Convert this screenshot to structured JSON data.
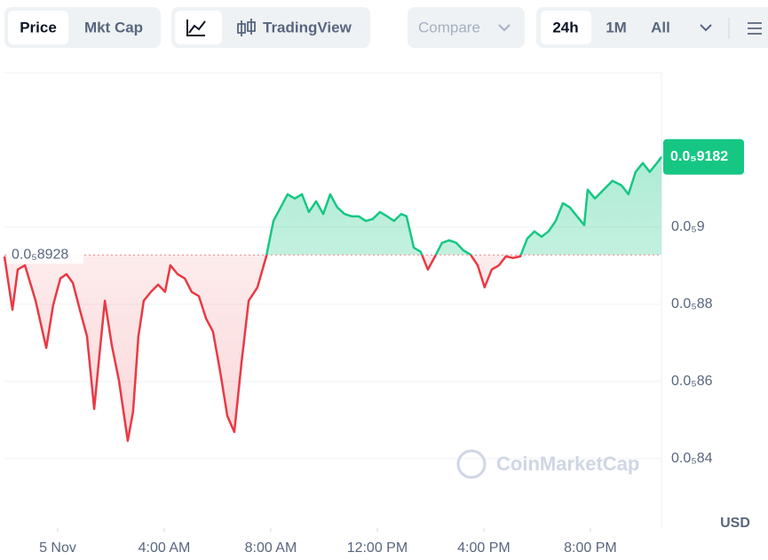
{
  "toolbar": {
    "tabs": [
      "Price",
      "Mkt Cap"
    ],
    "chart_style": "TradingView",
    "compare": "Compare",
    "ranges": [
      "24h",
      "1M",
      "All"
    ]
  },
  "chart_data": {
    "type": "line",
    "x": [
      -2,
      -1.7,
      -1.5,
      -1.23,
      -0.83,
      -0.43,
      -0.17,
      0.1,
      0.33,
      0.57,
      0.83,
      1.1,
      1.37,
      1.57,
      1.77,
      2.03,
      2.3,
      2.63,
      2.83,
      3.03,
      3.23,
      3.5,
      3.77,
      4.03,
      4.23,
      4.5,
      4.77,
      5.03,
      5.3,
      5.57,
      5.83,
      6.1,
      6.37,
      6.63,
      6.9,
      7.17,
      7.5,
      7.83,
      8.1,
      8.37,
      8.63,
      8.9,
      9.17,
      9.43,
      9.7,
      9.97,
      10.23,
      10.5,
      10.77,
      11.03,
      11.3,
      11.57,
      11.83,
      12.1,
      12.37,
      12.63,
      12.9,
      13.1,
      13.37,
      13.63,
      13.9,
      14.17,
      14.43,
      14.7,
      14.97,
      15.23,
      15.5,
      15.77,
      16.03,
      16.3,
      16.57,
      16.83,
      17.1,
      17.37,
      17.63,
      17.9,
      18.17,
      18.43,
      18.7,
      18.97,
      19.23,
      19.5,
      19.77,
      19.9,
      20.17,
      20.5,
      20.83,
      21.17,
      21.43,
      21.7,
      21.97,
      22.23,
      22.5,
      22.67
    ],
    "series": [
      {
        "name": "Price",
        "values": [
          8.924e-06,
          8.786e-06,
          8.89e-06,
          8.901e-06,
          8.809e-06,
          8.687e-06,
          8.798e-06,
          8.867e-06,
          8.878e-06,
          8.855e-06,
          8.786e-06,
          8.717e-06,
          8.529e-06,
          8.671e-06,
          8.809e-06,
          8.694e-06,
          8.602e-06,
          8.446e-06,
          8.522e-06,
          8.717e-06,
          8.809e-06,
          8.832e-06,
          8.851e-06,
          8.832e-06,
          8.901e-06,
          8.878e-06,
          8.867e-06,
          8.832e-06,
          8.821e-06,
          8.763e-06,
          8.729e-06,
          8.625e-06,
          8.51e-06,
          8.469e-06,
          8.648e-06,
          8.809e-06,
          8.844e-06,
          8.924e-06,
          9.016e-06,
          9.051e-06,
          9.085e-06,
          9.074e-06,
          9.085e-06,
          9.039e-06,
          9.067e-06,
          9.034e-06,
          9.085e-06,
          9.051e-06,
          9.034e-06,
          9.028e-06,
          9.028e-06,
          9.016e-06,
          9.021e-06,
          9.039e-06,
          9.028e-06,
          9.016e-06,
          9.034e-06,
          9.028e-06,
          8.947e-06,
          8.936e-06,
          8.89e-06,
          8.924e-06,
          8.959e-06,
          8.966e-06,
          8.959e-06,
          8.94e-06,
          8.929e-06,
          8.901e-06,
          8.844e-06,
          8.89e-06,
          8.901e-06,
          8.924e-06,
          8.92e-06,
          8.924e-06,
          8.97e-06,
          8.989e-06,
          8.975e-06,
          8.989e-06,
          9.016e-06,
          9.062e-06,
          9.051e-06,
          9.028e-06,
          9.005e-06,
          9.097e-06,
          9.074e-06,
          9.097e-06,
          9.12e-06,
          9.108e-06,
          9.085e-06,
          9.143e-06,
          9.166e-06,
          9.143e-06,
          9.166e-06,
          9.182e-06
        ]
      }
    ],
    "up_color": "#16c784",
    "down_color": "#ea3943",
    "reference": {
      "value": 8.928e-06,
      "label": "0.0₅8928"
    },
    "last": {
      "value": 9.182e-06,
      "label": "0.0₅9182"
    },
    "xlim": [
      -2,
      22.67
    ],
    "xticks": [
      {
        "value": 0,
        "label": "5 Nov"
      },
      {
        "value": 4,
        "label": "4:00 AM"
      },
      {
        "value": 8,
        "label": "8:00 AM"
      },
      {
        "value": 12,
        "label": "12:00 PM"
      },
      {
        "value": 16,
        "label": "4:00 PM"
      },
      {
        "value": 20,
        "label": "8:00 PM"
      }
    ],
    "ylim": [
      8.22e-06,
      9.4e-06
    ],
    "yticks": [
      {
        "value": 8.4e-06,
        "label": "0.0₅84"
      },
      {
        "value": 8.6e-06,
        "label": "0.0₅86"
      },
      {
        "value": 8.8e-06,
        "label": "0.0₅88"
      },
      {
        "value": 9e-06,
        "label": "0.0₅9"
      }
    ],
    "currency": "USD",
    "watermark": "CoinMarketCap",
    "grid": true
  }
}
